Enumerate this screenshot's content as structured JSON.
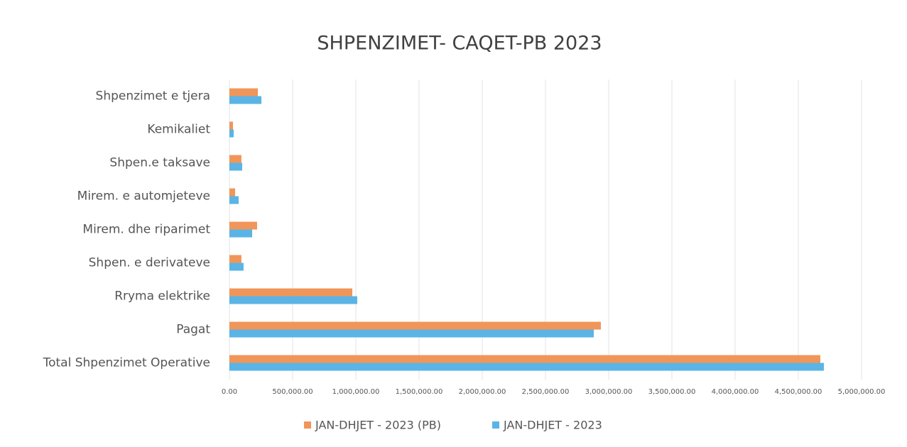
{
  "chart_data": {
    "type": "hbar",
    "title": "SHPENZIMET- CAQET-PB 2023",
    "categories": [
      "Shpenzimet e tjera",
      "Kemikaliet",
      "Shpen.e taksave",
      "Mirem. e automjeteve",
      "Mirem. dhe riparimet",
      "Shpen. e derivateve",
      "Rryma elektrike",
      "Pagat",
      "Total Shpenzimet Operative"
    ],
    "series": [
      {
        "name": "JAN-DHJET - 2023 (PB)",
        "color": "#f0965a",
        "values": [
          225000,
          28000,
          95000,
          45000,
          219000,
          95000,
          972000,
          2938000,
          4674000
        ]
      },
      {
        "name": "JAN-DHJET - 2023",
        "color": "#5ab4e6",
        "values": [
          253000,
          34000,
          101000,
          73000,
          180000,
          112000,
          1011000,
          2882000,
          4702000
        ]
      }
    ],
    "xlim": [
      0,
      5000000
    ],
    "xticks": [
      {
        "value": 0,
        "label": "0.00"
      },
      {
        "value": 500000,
        "label": "500,000.00"
      },
      {
        "value": 1000000,
        "label": "1,000,000.00"
      },
      {
        "value": 1500000,
        "label": "1,500,000.00"
      },
      {
        "value": 2000000,
        "label": "2,000,000.00"
      },
      {
        "value": 2500000,
        "label": "2,500,000.00"
      },
      {
        "value": 3000000,
        "label": "3,000,000.00"
      },
      {
        "value": 3500000,
        "label": "3,500,000.00"
      },
      {
        "value": 4000000,
        "label": "4,000,000.00"
      },
      {
        "value": 4500000,
        "label": "4,500,000.00"
      },
      {
        "value": 5000000,
        "label": "5,000,000.00"
      }
    ],
    "grid": true,
    "legend": "bottom"
  }
}
